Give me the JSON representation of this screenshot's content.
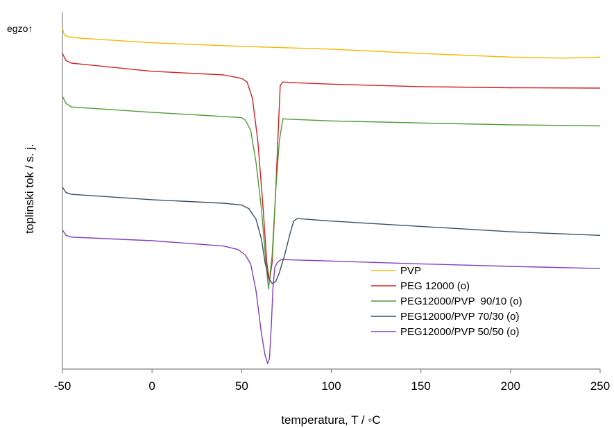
{
  "chart_data": {
    "type": "line",
    "title": "",
    "xlabel": "temperatura, T / ◦C",
    "ylabel": "toplinski tok / s. j.",
    "annotation": "egzo↑",
    "xlim": [
      -50,
      250
    ],
    "ylim": [
      0,
      100
    ],
    "xticks": [
      -50,
      0,
      50,
      100,
      150,
      200,
      250
    ],
    "xtick_labels": [
      "-50",
      "0",
      "50",
      "100",
      "150",
      "200",
      "250"
    ],
    "grid": false,
    "legend_position": "bottom-right",
    "series": [
      {
        "name": "PVP",
        "color": "#F5B800",
        "points": [
          [
            -50,
            95.5
          ],
          [
            -49,
            93.8
          ],
          [
            -47,
            93.2
          ],
          [
            -40,
            92.8
          ],
          [
            0,
            91.5
          ],
          [
            50,
            90.5
          ],
          [
            100,
            89.7
          ],
          [
            150,
            88.5
          ],
          [
            200,
            87.5
          ],
          [
            230,
            87.2
          ],
          [
            250,
            87.5
          ]
        ]
      },
      {
        "name": "PEG 12000 (o)",
        "color": "#D42020",
        "points": [
          [
            -50,
            88.5
          ],
          [
            -48,
            86.5
          ],
          [
            -45,
            85.8
          ],
          [
            0,
            83.5
          ],
          [
            40,
            82.5
          ],
          [
            50,
            81.5
          ],
          [
            53,
            80.5
          ],
          [
            56,
            76
          ],
          [
            59,
            64
          ],
          [
            62,
            45
          ],
          [
            64,
            30
          ],
          [
            65.5,
            24.5
          ],
          [
            67,
            30
          ],
          [
            69,
            50
          ],
          [
            70.5,
            68
          ],
          [
            71.5,
            79.5
          ],
          [
            73,
            80.5
          ],
          [
            80,
            80.3
          ],
          [
            100,
            79.9
          ],
          [
            150,
            79.2
          ],
          [
            200,
            78.9
          ],
          [
            250,
            78.8
          ]
        ]
      },
      {
        "name": "PEG12000/PVP  90/10 (o)",
        "color": "#4E9A37",
        "points": [
          [
            -50,
            76.5
          ],
          [
            -48,
            74.5
          ],
          [
            -45,
            73.5
          ],
          [
            0,
            72
          ],
          [
            50,
            70.5
          ],
          [
            52,
            69.8
          ],
          [
            55,
            67
          ],
          [
            58,
            58
          ],
          [
            61,
            45
          ],
          [
            63.5,
            30
          ],
          [
            65,
            22.5
          ],
          [
            67,
            32
          ],
          [
            69,
            50
          ],
          [
            71,
            64
          ],
          [
            73,
            70.2
          ],
          [
            75,
            70.1
          ],
          [
            100,
            69.6
          ],
          [
            150,
            69
          ],
          [
            200,
            68.5
          ],
          [
            250,
            68.2
          ]
        ]
      },
      {
        "name": "PEG12000/PVP 70/30 (o)",
        "color": "#3A4E63",
        "points": [
          [
            -50,
            51
          ],
          [
            -48,
            49.5
          ],
          [
            -45,
            49
          ],
          [
            0,
            47.5
          ],
          [
            40,
            46.5
          ],
          [
            50,
            46
          ],
          [
            54,
            45
          ],
          [
            58,
            42
          ],
          [
            61,
            36.5
          ],
          [
            63,
            30
          ],
          [
            65,
            25.5
          ],
          [
            67,
            24
          ],
          [
            69,
            24.5
          ],
          [
            71,
            27
          ],
          [
            74,
            32
          ],
          [
            77,
            38
          ],
          [
            79,
            41.5
          ],
          [
            81,
            42.2
          ],
          [
            100,
            41.5
          ],
          [
            150,
            40
          ],
          [
            200,
            38.5
          ],
          [
            250,
            37.5
          ]
        ]
      },
      {
        "name": "PEG12000/PVP 50/50 (o)",
        "color": "#7E3FBF",
        "points": [
          [
            -50,
            39
          ],
          [
            -48,
            37.5
          ],
          [
            -45,
            37
          ],
          [
            0,
            36
          ],
          [
            40,
            34.5
          ],
          [
            48,
            33.5
          ],
          [
            52,
            32
          ],
          [
            55,
            29.5
          ],
          [
            58,
            22
          ],
          [
            61,
            10
          ],
          [
            63,
            4
          ],
          [
            64.5,
            1.5
          ],
          [
            65.5,
            3
          ],
          [
            66.5,
            12
          ],
          [
            67.5,
            23
          ],
          [
            68.5,
            28.5
          ],
          [
            70,
            30
          ],
          [
            72,
            30.7
          ],
          [
            100,
            30.3
          ],
          [
            150,
            29.5
          ],
          [
            200,
            28.8
          ],
          [
            250,
            28.2
          ]
        ]
      }
    ]
  }
}
